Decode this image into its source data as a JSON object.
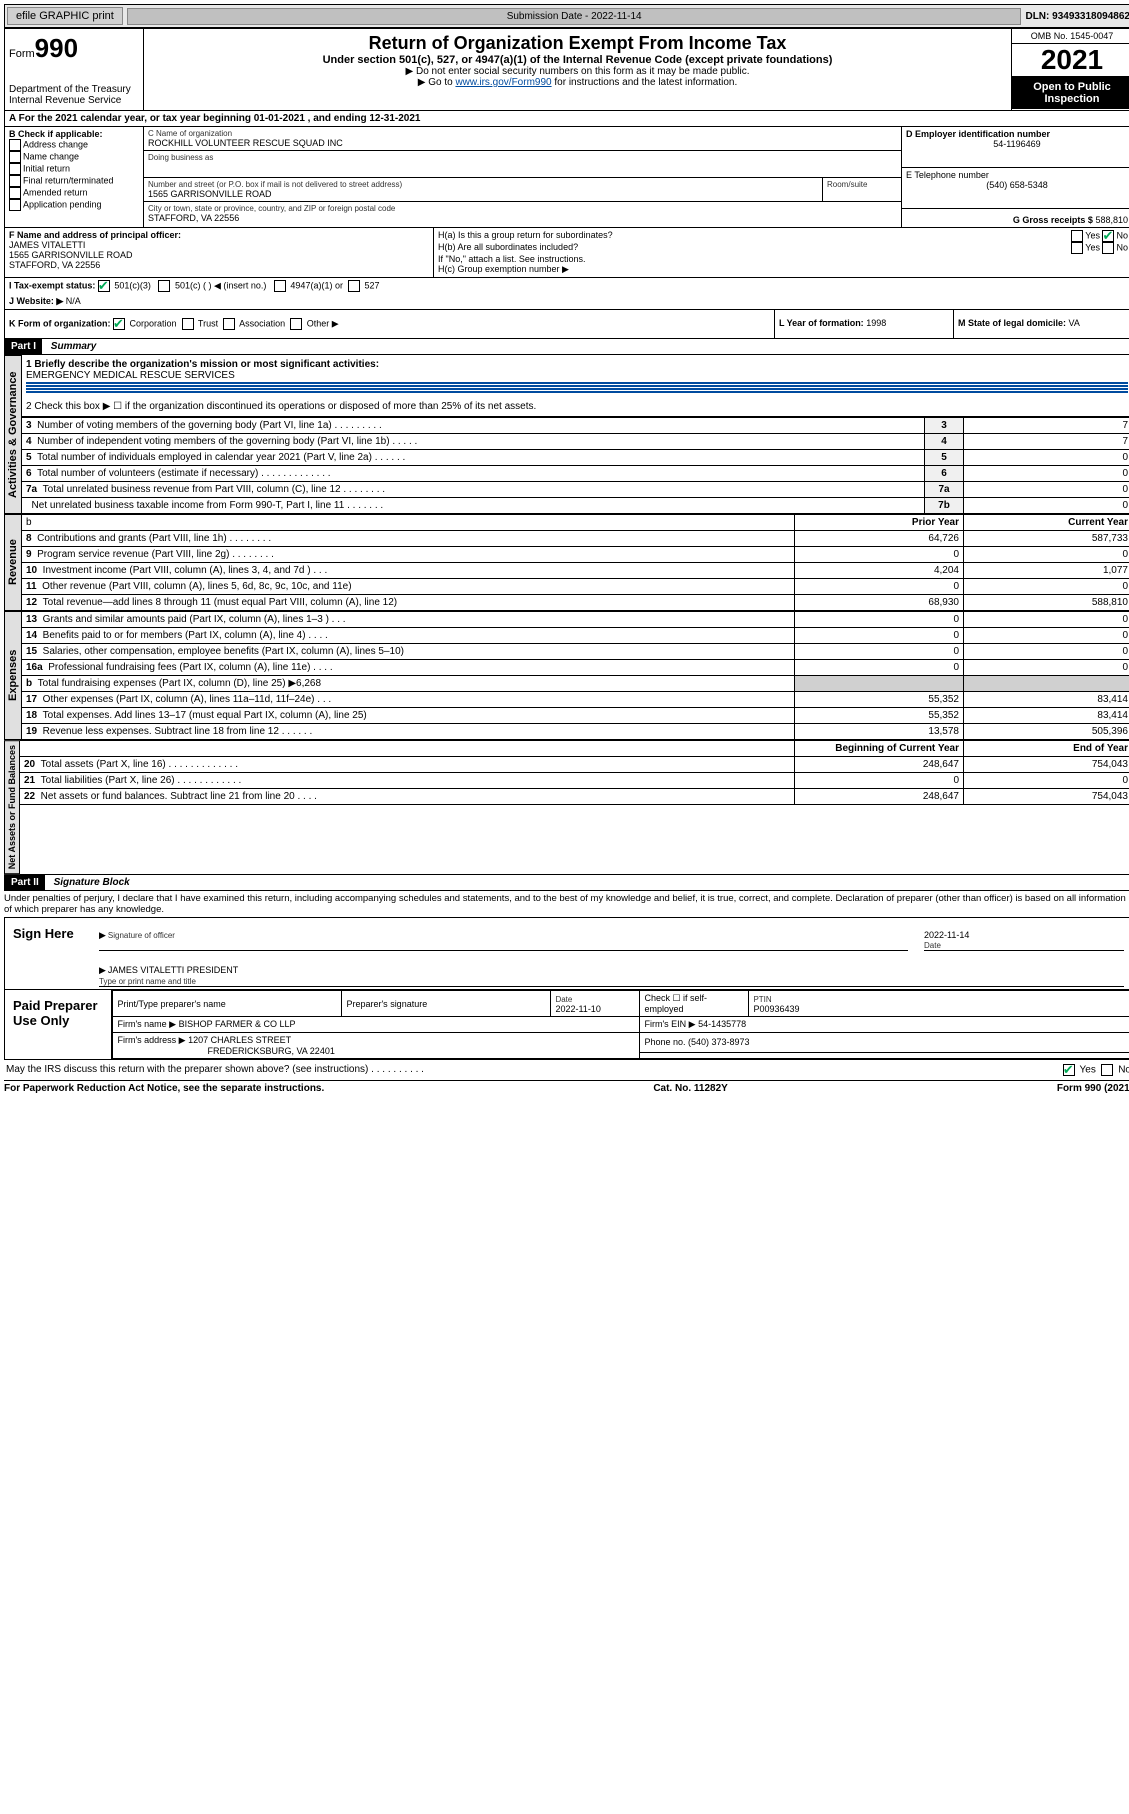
{
  "topbar": {
    "efile_label": "efile GRAPHIC print",
    "submission_label": "Submission Date - 2022-11-14",
    "dln": "DLN: 93493318094862"
  },
  "header": {
    "form_prefix": "Form",
    "form_number": "990",
    "title": "Return of Organization Exempt From Income Tax",
    "subtitle": "Under section 501(c), 527, or 4947(a)(1) of the Internal Revenue Code (except private foundations)",
    "instr1": "▶ Do not enter social security numbers on this form as it may be made public.",
    "instr2_prefix": "▶ Go to ",
    "instr2_link": "www.irs.gov/Form990",
    "instr2_suffix": " for instructions and the latest information.",
    "dept": "Department of the Treasury",
    "irs": "Internal Revenue Service",
    "omb": "OMB No. 1545-0047",
    "year": "2021",
    "open_public": "Open to Public Inspection"
  },
  "line_a": "For the 2021 calendar year, or tax year beginning 01-01-2021   , and ending 12-31-2021",
  "box_b": {
    "title": "B Check if applicable:",
    "items": [
      "Address change",
      "Name change",
      "Initial return",
      "Final return/terminated",
      "Amended return",
      "Application pending"
    ]
  },
  "box_c": {
    "label": "C Name of organization",
    "org_name": "ROCKHILL VOLUNTEER RESCUE SQUAD INC",
    "dba_label": "Doing business as",
    "street_label": "Number and street (or P.O. box if mail is not delivered to street address)",
    "room_label": "Room/suite",
    "street": "1565 GARRISONVILLE ROAD",
    "city_label": "City or town, state or province, country, and ZIP or foreign postal code",
    "city": "STAFFORD, VA  22556"
  },
  "box_d": {
    "label": "D Employer identification number",
    "value": "54-1196469"
  },
  "box_e": {
    "label": "E Telephone number",
    "value": "(540) 658-5348"
  },
  "box_g": {
    "label": "G Gross receipts $",
    "value": "588,810"
  },
  "box_f": {
    "label": "F Name and address of principal officer:",
    "name": "JAMES VITALETTI",
    "street": "1565 GARRISONVILLE ROAD",
    "city": "STAFFORD, VA  22556"
  },
  "box_h": {
    "ha": "H(a)  Is this a group return for subordinates?",
    "hb": "H(b)  Are all subordinates included?",
    "hb_note": "If \"No,\" attach a list. See instructions.",
    "hc": "H(c)  Group exemption number ▶",
    "yes": "Yes",
    "no": "No"
  },
  "box_i": {
    "label": "I    Tax-exempt status:",
    "opt1": "501(c)(3)",
    "opt2": "501(c) (   ) ◀ (insert no.)",
    "opt3": "4947(a)(1) or",
    "opt4": "527"
  },
  "box_j": {
    "label": "J    Website: ▶",
    "value": "N/A"
  },
  "box_k": {
    "label": "K Form of organization:",
    "opts": [
      "Corporation",
      "Trust",
      "Association",
      "Other ▶"
    ]
  },
  "box_l": {
    "label": "L Year of formation:",
    "value": "1998"
  },
  "box_m": {
    "label": "M State of legal domicile:",
    "value": "VA"
  },
  "part1": {
    "bar": "Part I",
    "title": "Summary"
  },
  "summary": {
    "mission_label": "1  Briefly describe the organization's mission or most significant activities:",
    "mission": "EMERGENCY MEDICAL RESCUE SERVICES",
    "line2": "2   Check this box ▶ ☐  if the organization discontinued its operations or disposed of more than 25% of its net assets.",
    "rows_gov": [
      {
        "n": "3",
        "t": "Number of voting members of the governing body (Part VI, line 1a)   .    .    .    .    .    .    .    .    .",
        "box": "3",
        "v": "7"
      },
      {
        "n": "4",
        "t": "Number of independent voting members of the governing body (Part VI, line 1b)    .    .    .    .    .",
        "box": "4",
        "v": "7"
      },
      {
        "n": "5",
        "t": "Total number of individuals employed in calendar year 2021 (Part V, line 2a)    .    .    .    .    .    .",
        "box": "5",
        "v": "0"
      },
      {
        "n": "6",
        "t": "Total number of volunteers (estimate if necessary)   .    .    .    .    .    .    .    .    .    .    .    .    .",
        "box": "6",
        "v": "0"
      },
      {
        "n": "7a",
        "t": "Total unrelated business revenue from Part VIII, column (C), line 12   .    .    .    .    .    .    .    .",
        "box": "7a",
        "v": "0"
      },
      {
        "n": "",
        "t": "Net unrelated business taxable income from Form 990-T, Part I, line 11   .    .    .    .    .    .    .",
        "box": "7b",
        "v": "0"
      }
    ],
    "hdr_prior": "Prior Year",
    "hdr_current": "Current Year",
    "rows_rev": [
      {
        "n": "8",
        "t": "Contributions and grants (Part VIII, line 1h)   .    .    .    .    .    .    .    .",
        "p": "64,726",
        "c": "587,733"
      },
      {
        "n": "9",
        "t": "Program service revenue (Part VIII, line 2g)   .    .    .    .    .    .    .    .",
        "p": "0",
        "c": "0"
      },
      {
        "n": "10",
        "t": "Investment income (Part VIII, column (A), lines 3, 4, and 7d )   .    .    .",
        "p": "4,204",
        "c": "1,077"
      },
      {
        "n": "11",
        "t": "Other revenue (Part VIII, column (A), lines 5, 6d, 8c, 9c, 10c, and 11e)",
        "p": "0",
        "c": "0"
      },
      {
        "n": "12",
        "t": "Total revenue—add lines 8 through 11 (must equal Part VIII, column (A), line 12)",
        "p": "68,930",
        "c": "588,810"
      }
    ],
    "rows_exp": [
      {
        "n": "13",
        "t": "Grants and similar amounts paid (Part IX, column (A), lines 1–3 )   .    .    .",
        "p": "0",
        "c": "0"
      },
      {
        "n": "14",
        "t": "Benefits paid to or for members (Part IX, column (A), line 4)   .    .    .    .",
        "p": "0",
        "c": "0"
      },
      {
        "n": "15",
        "t": "Salaries, other compensation, employee benefits (Part IX, column (A), lines 5–10)",
        "p": "0",
        "c": "0"
      },
      {
        "n": "16a",
        "t": "Professional fundraising fees (Part IX, column (A), line 11e)   .    .    .    .",
        "p": "0",
        "c": "0"
      },
      {
        "n": "b",
        "t": "Total fundraising expenses (Part IX, column (D), line 25) ▶6,268",
        "p": "",
        "c": "",
        "shade": true
      },
      {
        "n": "17",
        "t": "Other expenses (Part IX, column (A), lines 11a–11d, 11f–24e)   .    .    .",
        "p": "55,352",
        "c": "83,414"
      },
      {
        "n": "18",
        "t": "Total expenses. Add lines 13–17 (must equal Part IX, column (A), line 25)",
        "p": "55,352",
        "c": "83,414"
      },
      {
        "n": "19",
        "t": "Revenue less expenses. Subtract line 18 from line 12   .    .    .    .    .    .",
        "p": "13,578",
        "c": "505,396"
      }
    ],
    "hdr_begin": "Beginning of Current Year",
    "hdr_end": "End of Year",
    "rows_net": [
      {
        "n": "20",
        "t": "Total assets (Part X, line 16)   .    .    .    .    .    .    .    .    .    .    .    .    .",
        "p": "248,647",
        "c": "754,043"
      },
      {
        "n": "21",
        "t": "Total liabilities (Part X, line 26)   .    .    .    .    .    .    .    .    .    .    .    .",
        "p": "0",
        "c": "0"
      },
      {
        "n": "22",
        "t": "Net assets or fund balances. Subtract line 21 from line 20   .    .    .    .",
        "p": "248,647",
        "c": "754,043"
      }
    ],
    "vlabels": {
      "gov": "Activities & Governance",
      "rev": "Revenue",
      "exp": "Expenses",
      "net": "Net Assets or Fund Balances"
    }
  },
  "part2": {
    "bar": "Part II",
    "title": "Signature Block",
    "decl": "Under penalties of perjury, I declare that I have examined this return, including accompanying schedules and statements, and to the best of my knowledge and belief, it is true, correct, and complete. Declaration of preparer (other than officer) is based on all information of which preparer has any knowledge."
  },
  "sign": {
    "here": "Sign Here",
    "sig_label": "Signature of officer",
    "date_label": "Date",
    "date": "2022-11-14",
    "name": "JAMES VITALETTI  PRESIDENT",
    "name_label": "Type or print name and title"
  },
  "prep": {
    "left": "Paid Preparer Use Only",
    "h1": "Print/Type preparer's name",
    "h2": "Preparer's signature",
    "h3": "Date",
    "h4": "Check ☐ if self-employed",
    "h5": "PTIN",
    "date": "2022-11-10",
    "ptin": "P00936439",
    "firm_label": "Firm's name   ▶",
    "firm": "BISHOP FARMER & CO LLP",
    "ein_label": "Firm's EIN ▶",
    "ein": "54-1435778",
    "addr_label": "Firm's address ▶",
    "addr1": "1207 CHARLES STREET",
    "addr2": "FREDERICKSBURG, VA  22401",
    "phone_label": "Phone no.",
    "phone": "(540) 373-8973"
  },
  "discuss": {
    "q": "May the IRS discuss this return with the preparer shown above? (see instructions)   .    .    .    .    .    .    .    .    .    .",
    "yes": "Yes",
    "no": "No"
  },
  "footer": {
    "left": "For Paperwork Reduction Act Notice, see the separate instructions.",
    "mid": "Cat. No. 11282Y",
    "right": "Form 990 (2021)"
  }
}
